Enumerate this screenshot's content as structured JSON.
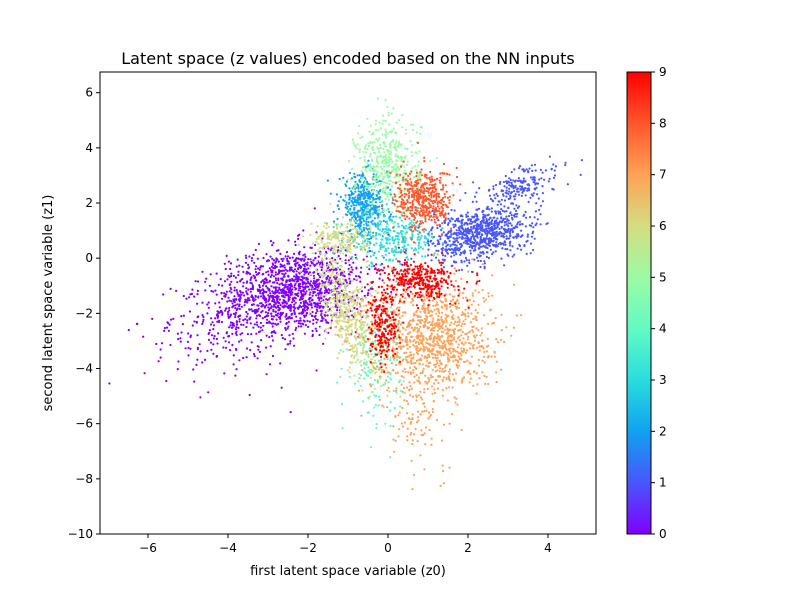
{
  "chart_data": {
    "type": "scatter",
    "title": "Latent space (z values) encoded based on the NN inputs",
    "xlabel": "first latent space variable (z0)",
    "ylabel": "second latent space variable (z1)",
    "xlim": [
      -7.2,
      5.2
    ],
    "ylim": [
      -10,
      6.75
    ],
    "x_ticks": [
      -6,
      -4,
      -2,
      0,
      2,
      4
    ],
    "y_ticks": [
      -10,
      -8,
      -6,
      -4,
      -2,
      0,
      2,
      4,
      6
    ],
    "grid": false,
    "legend": "none",
    "colorbar": {
      "range": [
        0,
        9
      ],
      "ticks": [
        0,
        1,
        2,
        3,
        4,
        5,
        6,
        7,
        8,
        9
      ],
      "colormap": "rainbow",
      "stops": [
        "#8000ff",
        "#4856fb",
        "#10a2f0",
        "#2adddd",
        "#62fbc4",
        "#9cfba4",
        "#d4dd80",
        "#ffa256",
        "#ff562c",
        "#ff0000"
      ]
    },
    "clusters": [
      {
        "label": 0,
        "color": "#8000ff",
        "center": [
          -2.4,
          -1.2
        ],
        "spread": [
          1.0,
          0.75
        ],
        "angle_deg": 22,
        "points": 1400
      },
      {
        "label": 0,
        "color": "#8000ff",
        "center": [
          -4.3,
          -2.7
        ],
        "spread": [
          0.9,
          1.0
        ],
        "angle_deg": 0,
        "points": 160
      },
      {
        "label": 1,
        "color": "#4856fb",
        "center": [
          2.3,
          0.9
        ],
        "spread": [
          0.65,
          0.45
        ],
        "angle_deg": 25,
        "points": 800
      },
      {
        "label": 1,
        "color": "#4856fb",
        "center": [
          3.3,
          2.6
        ],
        "spread": [
          0.6,
          0.3
        ],
        "angle_deg": 30,
        "points": 180
      },
      {
        "label": 2,
        "color": "#10a2f0",
        "center": [
          -0.6,
          1.9
        ],
        "spread": [
          0.3,
          0.55
        ],
        "angle_deg": 0,
        "points": 450
      },
      {
        "label": 3,
        "color": "#2adddd",
        "center": [
          0.1,
          0.7
        ],
        "spread": [
          0.55,
          0.45
        ],
        "angle_deg": 0,
        "points": 300
      },
      {
        "label": 4,
        "color": "#62fbc4",
        "center": [
          -0.3,
          -3.7
        ],
        "spread": [
          0.35,
          1.0
        ],
        "angle_deg": 0,
        "points": 160
      },
      {
        "label": 5,
        "color": "#9cfba4",
        "center": [
          0.0,
          3.3
        ],
        "spread": [
          0.4,
          0.9
        ],
        "angle_deg": 0,
        "points": 450
      },
      {
        "label": 6,
        "color": "#d4dd80",
        "center": [
          -1.0,
          -2.0
        ],
        "spread": [
          0.3,
          1.1
        ],
        "angle_deg": 15,
        "points": 500
      },
      {
        "label": 6,
        "color": "#d4dd80",
        "center": [
          -1.2,
          0.7
        ],
        "spread": [
          0.35,
          0.3
        ],
        "angle_deg": 0,
        "points": 200
      },
      {
        "label": 7,
        "color": "#ffa256",
        "center": [
          1.1,
          -2.8
        ],
        "spread": [
          0.75,
          1.0
        ],
        "angle_deg": 0,
        "points": 1000
      },
      {
        "label": 7,
        "color": "#ffa256",
        "center": [
          0.8,
          -5.5
        ],
        "spread": [
          0.5,
          1.2
        ],
        "angle_deg": 0,
        "points": 120
      },
      {
        "label": 8,
        "color": "#ff562c",
        "center": [
          0.9,
          2.1
        ],
        "spread": [
          0.35,
          0.55
        ],
        "angle_deg": 0,
        "points": 450
      },
      {
        "label": 9,
        "color": "#ff0000",
        "center": [
          0.8,
          -0.8
        ],
        "spread": [
          0.45,
          0.35
        ],
        "angle_deg": 0,
        "points": 350
      },
      {
        "label": 9,
        "color": "#ff0000",
        "center": [
          -0.1,
          -2.5
        ],
        "spread": [
          0.2,
          0.7
        ],
        "angle_deg": 0,
        "points": 220
      }
    ]
  }
}
